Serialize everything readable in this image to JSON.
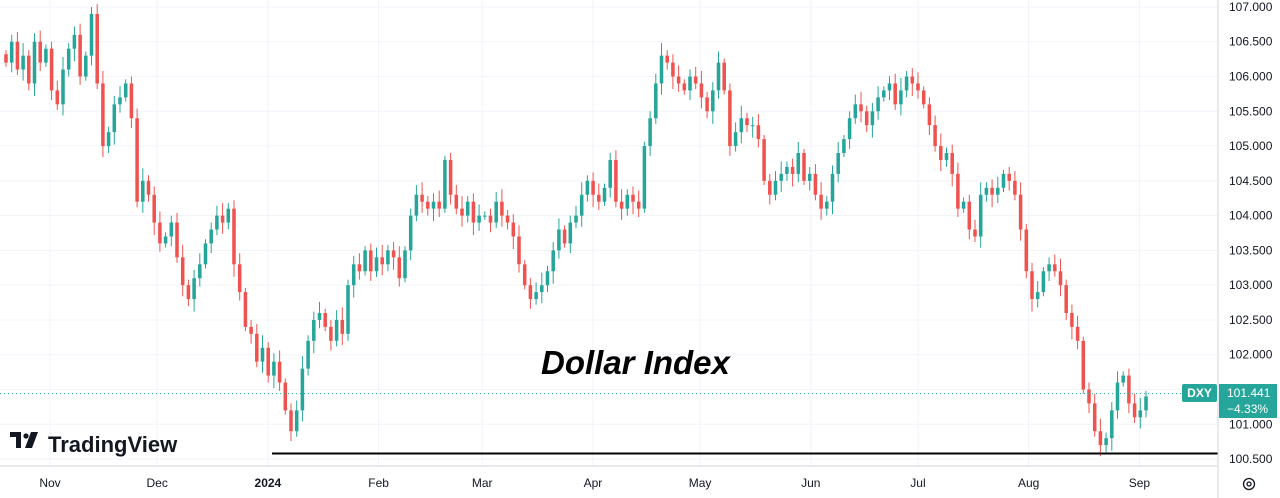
{
  "chart_data": {
    "type": "candlestick",
    "annotation": "Dollar Index",
    "brand": "TradingView",
    "symbol": "DXY",
    "last_price": "101.441",
    "change_pct": "−4.33%",
    "support_level": 100.58,
    "y_ticks": [
      "100.500",
      "101.000",
      "101.500",
      "102.000",
      "102.500",
      "103.000",
      "103.500",
      "104.000",
      "104.500",
      "105.000",
      "105.500",
      "106.000",
      "106.500",
      "107.000"
    ],
    "x_ticks": [
      {
        "label": "Nov",
        "date": "2023-11-01"
      },
      {
        "label": "Dec",
        "date": "2023-12-01"
      },
      {
        "label": "2024",
        "date": "2024-01-01"
      },
      {
        "label": "Feb",
        "date": "2024-02-01"
      },
      {
        "label": "Mar",
        "date": "2024-03-01"
      },
      {
        "label": "Apr",
        "date": "2024-04-01"
      },
      {
        "label": "May",
        "date": "2024-05-01"
      },
      {
        "label": "Jun",
        "date": "2024-06-01"
      },
      {
        "label": "Jul",
        "date": "2024-07-01"
      },
      {
        "label": "Aug",
        "date": "2024-08-01"
      },
      {
        "label": "Sep",
        "date": "2024-09-01"
      }
    ],
    "ylim": [
      100.4,
      107.1
    ],
    "xlim": [
      "2023-10-18",
      "2024-09-23"
    ],
    "colors": {
      "up": "#26a69a",
      "down": "#ef5350",
      "line": "#000000",
      "price_line": "#26a69a",
      "text": "#131722"
    },
    "close_series": [
      106.2,
      106.5,
      106.1,
      106.3,
      105.9,
      106.5,
      106.2,
      106.4,
      105.8,
      105.6,
      106.1,
      106.4,
      106.6,
      106.0,
      106.3,
      106.9,
      105.9,
      105.0,
      105.2,
      105.6,
      105.7,
      105.9,
      105.4,
      104.2,
      104.5,
      104.3,
      103.9,
      103.6,
      103.7,
      103.9,
      103.4,
      103.0,
      102.8,
      103.1,
      103.3,
      103.6,
      103.8,
      104.0,
      103.9,
      104.1,
      103.3,
      102.9,
      102.4,
      102.3,
      101.9,
      102.1,
      101.7,
      101.9,
      101.6,
      101.2,
      100.9,
      101.2,
      101.8,
      102.2,
      102.5,
      102.6,
      102.4,
      102.2,
      102.5,
      102.3,
      103.0,
      103.3,
      103.2,
      103.5,
      103.2,
      103.4,
      103.3,
      103.5,
      103.4,
      103.1,
      103.5,
      104.0,
      104.3,
      104.2,
      104.1,
      104.2,
      104.1,
      104.8,
      104.3,
      104.1,
      104.0,
      104.2,
      103.9,
      104.0,
      104.0,
      103.9,
      104.2,
      104.0,
      103.9,
      103.7,
      103.3,
      103.0,
      102.8,
      102.9,
      103.0,
      103.2,
      103.5,
      103.8,
      103.6,
      103.9,
      104.0,
      104.3,
      104.5,
      104.3,
      104.2,
      104.4,
      104.8,
      104.2,
      104.1,
      104.3,
      104.2,
      104.1,
      105.0,
      105.4,
      105.9,
      106.3,
      106.2,
      106.0,
      105.9,
      105.8,
      106.0,
      105.9,
      105.7,
      105.5,
      105.8,
      106.2,
      105.8,
      105.0,
      105.2,
      105.4,
      105.3,
      105.3,
      105.1,
      104.5,
      104.3,
      104.5,
      104.6,
      104.7,
      104.6,
      104.9,
      104.5,
      104.6,
      104.3,
      104.1,
      104.2,
      104.6,
      104.9,
      105.1,
      105.4,
      105.6,
      105.5,
      105.3,
      105.5,
      105.7,
      105.8,
      105.9,
      105.6,
      105.8,
      106.0,
      105.9,
      105.8,
      105.6,
      105.3,
      105.0,
      104.8,
      104.9,
      104.6,
      104.1,
      104.2,
      103.8,
      103.7,
      104.3,
      104.4,
      104.3,
      104.4,
      104.6,
      104.5,
      104.3,
      103.8,
      103.2,
      102.8,
      102.9,
      103.2,
      103.3,
      103.2,
      103.0,
      102.6,
      102.4,
      102.2,
      101.5,
      101.3,
      100.9,
      100.7,
      100.8,
      101.2,
      101.6,
      101.7,
      101.3,
      101.1,
      101.2,
      101.4
    ]
  }
}
